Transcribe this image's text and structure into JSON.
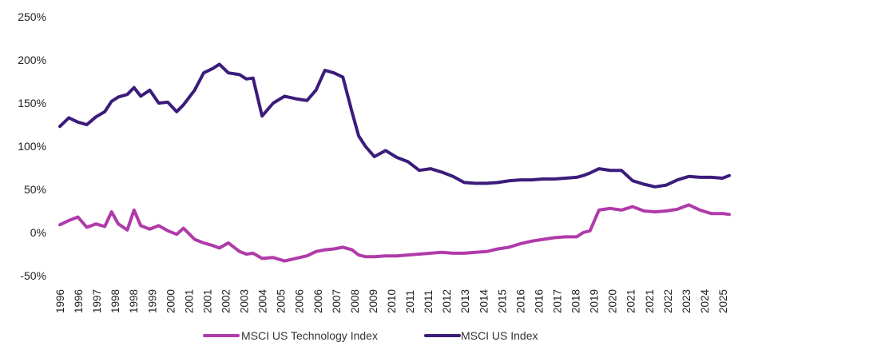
{
  "chart_data": {
    "type": "line",
    "title": "",
    "xlabel": "",
    "ylabel": "",
    "ylim": [
      -50,
      250
    ],
    "grid": false,
    "legend_position": "bottom",
    "y_tick_labels": [
      "-50%",
      "0%",
      "50%",
      "100%",
      "150%",
      "200%",
      "250%"
    ],
    "x_tick_labels": [
      "1996",
      "1996",
      "1997",
      "1998",
      "1998",
      "1999",
      "2000",
      "2001",
      "2001",
      "2002",
      "2003",
      "2004",
      "2005",
      "2006",
      "2006",
      "2007",
      "2008",
      "2009",
      "2010",
      "2011",
      "2011",
      "2012",
      "2013",
      "2014",
      "2015",
      "2016",
      "2016",
      "2017",
      "2018",
      "2019",
      "2020",
      "2021",
      "2021",
      "2022",
      "2023",
      "2024",
      "2025"
    ],
    "x": [
      1996.0,
      1996.4,
      1996.8,
      1997.2,
      1997.6,
      1998.0,
      1998.3,
      1998.6,
      1999.0,
      1999.3,
      1999.6,
      2000.0,
      2000.4,
      2000.8,
      2001.2,
      2001.5,
      2002.0,
      2002.4,
      2002.8,
      2003.1,
      2003.5,
      2004.0,
      2004.3,
      2004.6,
      2005.0,
      2005.5,
      2006.0,
      2006.5,
      2007.0,
      2007.4,
      2007.8,
      2008.2,
      2008.6,
      2009.0,
      2009.3,
      2009.6,
      2010.0,
      2010.5,
      2011.0,
      2011.5,
      2012.0,
      2012.5,
      2013.0,
      2013.5,
      2014.0,
      2014.5,
      2015.0,
      2015.5,
      2016.0,
      2016.5,
      2017.0,
      2017.5,
      2018.0,
      2018.5,
      2019.0,
      2019.3,
      2019.6,
      2020.0,
      2020.5,
      2021.0,
      2021.5,
      2022.0,
      2022.5,
      2023.0,
      2023.5,
      2024.0,
      2024.5,
      2025.0,
      2025.5,
      2025.8
    ],
    "series": [
      {
        "name": "MSCI US Technology Index",
        "color": "#b03aa9",
        "values": [
          9,
          14,
          18,
          6,
          10,
          7,
          24,
          10,
          3,
          26,
          8,
          4,
          8,
          2,
          -2,
          5,
          -8,
          -12,
          -15,
          -18,
          -12,
          -22,
          -25,
          -24,
          -30,
          -29,
          -33,
          -30,
          -27,
          -22,
          -20,
          -19,
          -17,
          -20,
          -26,
          -28,
          -28,
          -27,
          -27,
          -26,
          -25,
          -24,
          -23,
          -24,
          -24,
          -23,
          -22,
          -19,
          -17,
          -13,
          -10,
          -8,
          -6,
          -5,
          -5,
          0,
          2,
          26,
          28,
          26,
          30,
          25,
          24,
          25,
          27,
          32,
          26,
          22,
          22,
          21
        ]
      },
      {
        "name": "MSCI US Index",
        "color": "#3b1c7a",
        "values": [
          123,
          133,
          128,
          125,
          134,
          140,
          152,
          157,
          160,
          168,
          158,
          165,
          150,
          151,
          140,
          148,
          165,
          185,
          190,
          195,
          185,
          183,
          178,
          179,
          135,
          150,
          158,
          155,
          153,
          165,
          188,
          185,
          180,
          140,
          112,
          100,
          88,
          95,
          87,
          82,
          72,
          74,
          70,
          65,
          58,
          57,
          57,
          58,
          60,
          61,
          61,
          62,
          62,
          63,
          64,
          66,
          69,
          74,
          72,
          72,
          60,
          56,
          53,
          55,
          61,
          65,
          64,
          64,
          63,
          66
        ]
      }
    ]
  }
}
